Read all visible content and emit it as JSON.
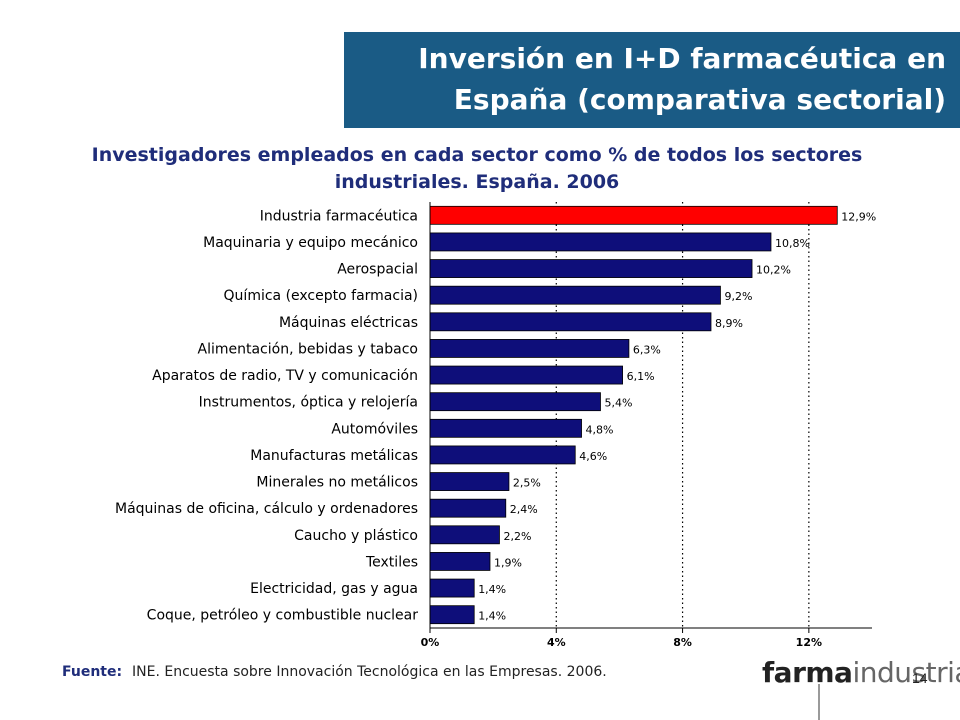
{
  "slide": {
    "title_line1": "Inversión en I+D farmacéutica en",
    "title_line2": "España (comparativa sectorial)",
    "subtitle_line1": "Investigadores empleados en cada sector como % de todos los sectores",
    "subtitle_line2": "industriales. España. 2006",
    "footer_label": "Fuente:",
    "footer_text": "INE. Encuesta sobre Innovación Tecnológica en las Empresas. 2006.",
    "logo_bold": "farma",
    "logo_light": "industria",
    "page_number": "14"
  },
  "colors": {
    "title_bg": "#1a5b85",
    "highlight_bar": "#ff0000",
    "bar": "#0e0e7a",
    "text_navy": "#1f2d7a"
  },
  "chart_data": {
    "type": "bar",
    "orientation": "horizontal",
    "categories": [
      "Industria farmacéutica",
      "Maquinaria y equipo mecánico",
      "Aerospacial",
      "Química (excepto farmacia)",
      "Máquinas eléctricas",
      "Alimentación, bebidas y tabaco",
      "Aparatos de radio, TV y comunicación",
      "Instrumentos, óptica y relojería",
      "Automóviles",
      "Manufacturas metálicas",
      "Minerales no metálicos",
      "Máquinas de oficina, cálculo y ordenadores",
      "Caucho y plástico",
      "Textiles",
      "Electricidad, gas y agua",
      "Coque, petróleo y combustible nuclear"
    ],
    "values": [
      12.9,
      10.8,
      10.2,
      9.2,
      8.9,
      6.3,
      6.1,
      5.4,
      4.8,
      4.6,
      2.5,
      2.4,
      2.2,
      1.9,
      1.4,
      1.4
    ],
    "value_labels": [
      "12,9%",
      "10,8%",
      "10,2%",
      "9,2%",
      "8,9%",
      "6,3%",
      "6,1%",
      "5,4%",
      "4,8%",
      "4,6%",
      "2,5%",
      "2,4%",
      "2,2%",
      "1,9%",
      "1,4%",
      "1,4%"
    ],
    "highlight_index": 0,
    "xlim": [
      0,
      14
    ],
    "x_ticks": [
      0,
      4,
      8,
      12
    ],
    "x_tick_labels": [
      "0%",
      "4%",
      "8%",
      "12%"
    ],
    "grid": "vertical dotted",
    "legend": "none"
  }
}
